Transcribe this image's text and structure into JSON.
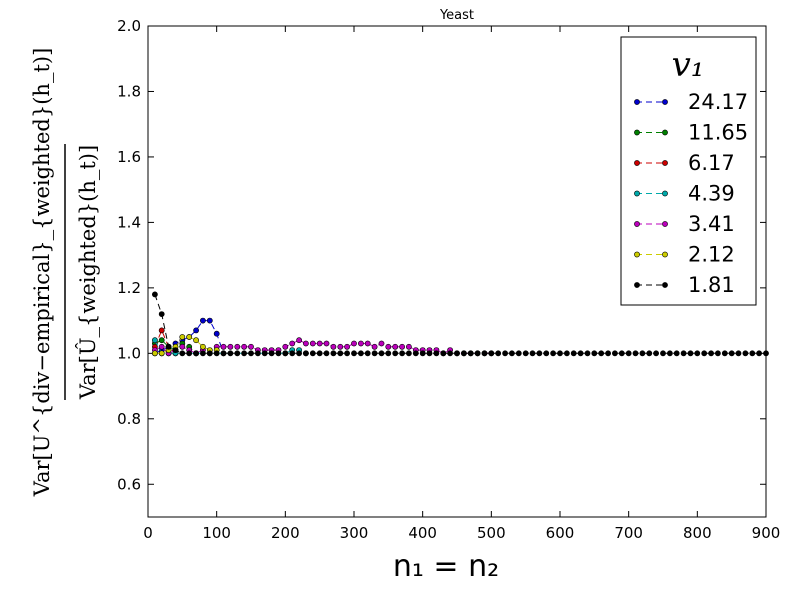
{
  "chart_data": {
    "type": "line",
    "title": "Yeast",
    "xlabel": "n₁ = n₂",
    "ylabel_numerator": "Var[U^{div−empirical}_{weighted}(h_t)]",
    "ylabel_denominator": "Var[Û_{weighted}(h_t)]",
    "xlim": [
      0,
      900
    ],
    "ylim": [
      0.5,
      2.0
    ],
    "xticks": [
      0,
      100,
      200,
      300,
      400,
      500,
      600,
      700,
      800,
      900
    ],
    "yticks": [
      0.6,
      0.8,
      1.0,
      1.2,
      1.4,
      1.6,
      1.8,
      2.0
    ],
    "ytick_labels": [
      "0.6",
      "0.8",
      "1.0",
      "1.2",
      "1.4",
      "1.6",
      "1.8",
      "2.0"
    ],
    "legend_title": "v₁",
    "legend_position": "upper-right",
    "line_style": "dashed",
    "marker": "circle",
    "series": [
      {
        "name": "24.17",
        "color": "#0000cc",
        "x": [
          10,
          20,
          30,
          40,
          50,
          60,
          70,
          80,
          90,
          100,
          110
        ],
        "y": [
          1.0,
          1.01,
          1.02,
          1.03,
          1.04,
          1.05,
          1.07,
          1.1,
          1.1,
          1.06,
          1.0
        ]
      },
      {
        "name": "11.65",
        "color": "#008000",
        "x": [
          10,
          20,
          30,
          40,
          50,
          60,
          70
        ],
        "y": [
          1.03,
          1.04,
          1.02,
          1.01,
          1.03,
          1.02,
          1.0
        ]
      },
      {
        "name": "6.17",
        "color": "#cc0000",
        "x": [
          10,
          20,
          30,
          40
        ],
        "y": [
          1.02,
          1.07,
          1.02,
          1.0
        ]
      },
      {
        "name": "4.39",
        "color": "#00aaaa",
        "x": [
          10,
          20,
          30,
          40,
          200,
          210,
          220,
          230
        ],
        "y": [
          1.04,
          1.0,
          1.0,
          1.0,
          1.0,
          1.01,
          1.01,
          1.0
        ]
      },
      {
        "name": "3.41",
        "color": "#bb00bb",
        "x": [
          10,
          20,
          30,
          40,
          50,
          60,
          70,
          80,
          90,
          100,
          110,
          120,
          130,
          140,
          150,
          160,
          170,
          180,
          190,
          200,
          210,
          220,
          230,
          240,
          250,
          260,
          270,
          280,
          290,
          300,
          310,
          320,
          330,
          340,
          350,
          360,
          370,
          380,
          390,
          400,
          410,
          420,
          430,
          440,
          450,
          460,
          470,
          480,
          490,
          500
        ],
        "y": [
          1.01,
          1.02,
          1.0,
          1.01,
          1.02,
          1.01,
          1.0,
          1.01,
          1.0,
          1.02,
          1.02,
          1.02,
          1.02,
          1.02,
          1.02,
          1.01,
          1.01,
          1.01,
          1.01,
          1.02,
          1.03,
          1.04,
          1.03,
          1.03,
          1.03,
          1.03,
          1.02,
          1.02,
          1.02,
          1.03,
          1.03,
          1.03,
          1.02,
          1.03,
          1.02,
          1.02,
          1.02,
          1.02,
          1.01,
          1.01,
          1.01,
          1.01,
          1.0,
          1.01,
          1.0,
          1.0,
          1.0,
          1.0,
          1.0,
          1.0
        ]
      },
      {
        "name": "2.12",
        "color": "#cccc00",
        "x": [
          10,
          20,
          30,
          40,
          50,
          60,
          70,
          80,
          90,
          100
        ],
        "y": [
          1.0,
          1.0,
          1.01,
          1.02,
          1.05,
          1.05,
          1.04,
          1.02,
          1.01,
          1.01
        ]
      },
      {
        "name": "1.81",
        "color": "#000000",
        "x": [
          10,
          20,
          30,
          40,
          50,
          60,
          70,
          80,
          90,
          100,
          110,
          120,
          130,
          140,
          150,
          160,
          170,
          180,
          190,
          200,
          210,
          220,
          230,
          240,
          250,
          260,
          270,
          280,
          290,
          300,
          310,
          320,
          330,
          340,
          350,
          360,
          370,
          380,
          390,
          400,
          410,
          420,
          430,
          440,
          450,
          460,
          470,
          480,
          490,
          500,
          510,
          520,
          530,
          540,
          550,
          560,
          570,
          580,
          590,
          600,
          610,
          620,
          630,
          640,
          650,
          660,
          670,
          680,
          690,
          700,
          710,
          720,
          730,
          740,
          750,
          760,
          770,
          780,
          790,
          800,
          810,
          820,
          830,
          840,
          850,
          860,
          870,
          880,
          890,
          900
        ],
        "y": [
          1.18,
          1.12,
          1.02,
          1.01,
          1.0,
          1.0,
          1.0,
          1.0,
          1.0,
          1.0,
          1.0,
          1.0,
          1.0,
          1.0,
          1.0,
          1.0,
          1.0,
          1.0,
          1.0,
          1.0,
          1.0,
          1.0,
          1.0,
          1.0,
          1.0,
          1.0,
          1.0,
          1.0,
          1.0,
          1.0,
          1.0,
          1.0,
          1.0,
          1.0,
          1.0,
          1.0,
          1.0,
          1.0,
          1.0,
          1.0,
          1.0,
          1.0,
          1.0,
          1.0,
          1.0,
          1.0,
          1.0,
          1.0,
          1.0,
          1.0,
          1.0,
          1.0,
          1.0,
          1.0,
          1.0,
          1.0,
          1.0,
          1.0,
          1.0,
          1.0,
          1.0,
          1.0,
          1.0,
          1.0,
          1.0,
          1.0,
          1.0,
          1.0,
          1.0,
          1.0,
          1.0,
          1.0,
          1.0,
          1.0,
          1.0,
          1.0,
          1.0,
          1.0,
          1.0,
          1.0,
          1.0,
          1.0,
          1.0,
          1.0,
          1.0,
          1.0,
          1.0,
          1.0,
          1.0,
          1.0
        ]
      }
    ]
  }
}
